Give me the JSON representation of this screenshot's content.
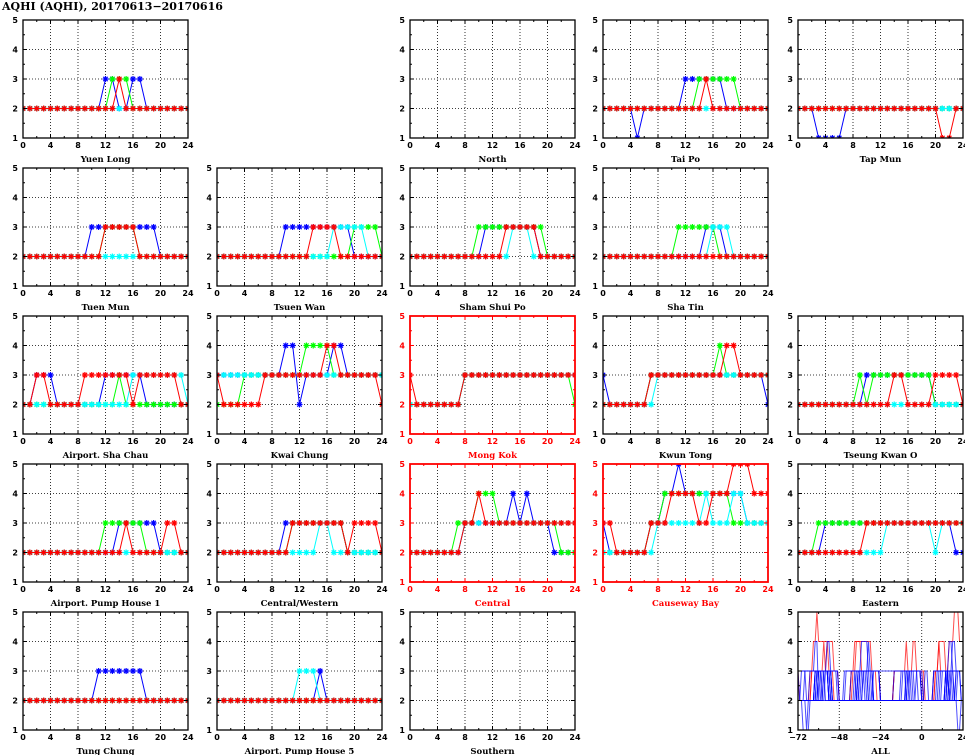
{
  "title": "AQHI (AQHI), 20170613−20170616",
  "colors": {
    "day_series": [
      "#0000ff",
      "#00ff00",
      "#00ffff",
      "#ff0000"
    ],
    "roadside": "#ff0000",
    "general": "#0000ff",
    "frame": "#000000"
  },
  "chart_data": [
    {
      "type": "line",
      "title": "Yuen Long",
      "roadside": false,
      "xlim": [
        0,
        24
      ],
      "ylim": [
        1,
        5
      ],
      "xticks": [
        0,
        4,
        8,
        12,
        16,
        20,
        24
      ],
      "yticks": [
        1,
        2,
        3,
        4,
        5
      ],
      "series": [
        {
          "color": "#0000ff",
          "values": "2*12,3*2,2*2,3*2,2*7"
        },
        {
          "color": "#00ff00",
          "values": "2*13,3*3,2*9"
        },
        {
          "color": "#00ffff",
          "values": "2*25"
        },
        {
          "color": "#ff0000",
          "values": "2*14,3*1,2*10"
        }
      ]
    },
    {
      "type": "line",
      "title": "North",
      "roadside": false,
      "xlim": [
        0,
        24
      ],
      "ylim": [
        1,
        5
      ],
      "xticks": [
        0,
        4,
        8,
        12,
        16,
        20,
        24
      ],
      "yticks": [
        1,
        2,
        3,
        4,
        5
      ],
      "series": []
    },
    {
      "type": "line",
      "title": "Tai Po",
      "roadside": false,
      "xlim": [
        0,
        24
      ],
      "ylim": [
        1,
        5
      ],
      "xticks": [
        0,
        4,
        8,
        12,
        16,
        20,
        24
      ],
      "yticks": [
        1,
        2,
        3,
        4,
        5
      ],
      "series": [
        {
          "color": "#0000ff",
          "values": "2*5,1*1,2*6,3*6,2*7"
        },
        {
          "color": "#00ff00",
          "values": "2*14,3*6,2*5"
        },
        {
          "color": "#00ffff",
          "values": "2*25"
        },
        {
          "color": "#ff0000",
          "values": "2*15,3*1,2*9"
        }
      ]
    },
    {
      "type": "line",
      "title": "Tap Mun",
      "roadside": false,
      "xlim": [
        0,
        24
      ],
      "ylim": [
        1,
        5
      ],
      "xticks": [
        0,
        4,
        8,
        12,
        16,
        20,
        24
      ],
      "yticks": [
        1,
        2,
        3,
        4,
        5
      ],
      "series": [
        {
          "color": "#0000ff",
          "values": "2*3,1*4,2*18"
        },
        {
          "color": "#00ff00",
          "values": "2*25"
        },
        {
          "color": "#00ffff",
          "values": "2*25"
        },
        {
          "color": "#ff0000",
          "values": "2*21,1*2,2*2"
        }
      ]
    },
    {
      "type": "line",
      "title": "Tuen Mun",
      "roadside": false,
      "xlim": [
        0,
        24
      ],
      "ylim": [
        1,
        5
      ],
      "xticks": [
        0,
        4,
        8,
        12,
        16,
        20,
        24
      ],
      "yticks": [
        1,
        2,
        3,
        4,
        5
      ],
      "series": [
        {
          "color": "#0000ff",
          "values": "2*10,3*10,2*5"
        },
        {
          "color": "#00ff00",
          "values": "2*12,3*5,2*8"
        },
        {
          "color": "#00ffff",
          "values": "2*25"
        },
        {
          "color": "#ff0000",
          "values": "2*12,3*5,2*8"
        }
      ]
    },
    {
      "type": "line",
      "title": "Tsuen Wan",
      "roadside": false,
      "xlim": [
        0,
        24
      ],
      "ylim": [
        1,
        5
      ],
      "xticks": [
        0,
        4,
        8,
        12,
        16,
        20,
        24
      ],
      "yticks": [
        1,
        2,
        3,
        4,
        5
      ],
      "series": [
        {
          "color": "#0000ff",
          "values": "2*10,3*10,2*5"
        },
        {
          "color": "#00ff00",
          "values": "2*20,3*4,2*1"
        },
        {
          "color": "#00ffff",
          "values": "2*17,3*5,2*3"
        },
        {
          "color": "#ff0000",
          "values": "2*14,3*4,2*7"
        }
      ]
    },
    {
      "type": "line",
      "title": "Sham Shui Po",
      "roadside": false,
      "xlim": [
        0,
        24
      ],
      "ylim": [
        1,
        5
      ],
      "xticks": [
        0,
        4,
        8,
        12,
        16,
        20,
        24
      ],
      "yticks": [
        1,
        2,
        3,
        4,
        5
      ],
      "series": [
        {
          "color": "#0000ff",
          "values": "2*11,3*8,2*6"
        },
        {
          "color": "#00ff00",
          "values": "2*10,3*10,2*5"
        },
        {
          "color": "#00ffff",
          "values": "2*15,3*3,2*7"
        },
        {
          "color": "#ff0000",
          "values": "2*14,3*5,2*6"
        }
      ]
    },
    {
      "type": "line",
      "title": "Sha Tin",
      "roadside": false,
      "xlim": [
        0,
        24
      ],
      "ylim": [
        1,
        5
      ],
      "xticks": [
        0,
        4,
        8,
        12,
        16,
        20,
        24
      ],
      "yticks": [
        1,
        2,
        3,
        4,
        5
      ],
      "series": [
        {
          "color": "#0000ff",
          "values": "2*15,3*3,2*7"
        },
        {
          "color": "#00ff00",
          "values": "2*11,3*6,2*8"
        },
        {
          "color": "#00ffff",
          "values": "2*16,3*3,2*6"
        },
        {
          "color": "#ff0000",
          "values": "2*25"
        }
      ]
    },
    {
      "type": "line",
      "title": "Airport. Sha Chau",
      "roadside": false,
      "xlim": [
        0,
        24
      ],
      "ylim": [
        1,
        5
      ],
      "xticks": [
        0,
        4,
        8,
        12,
        16,
        20,
        24
      ],
      "yticks": [
        1,
        2,
        3,
        4,
        5
      ],
      "series": [
        {
          "color": "#0000ff",
          "values": "2*2,3*3,2*7,3*6,2*7"
        },
        {
          "color": "#00ff00",
          "values": "2*14,3*1,2*10"
        },
        {
          "color": "#00ffff",
          "values": "2*16,3*8,2*1"
        },
        {
          "color": "#ff0000",
          "values": "2*2,3*2,2*5,3*7,2*1,3*6,2*2"
        }
      ]
    },
    {
      "type": "line",
      "title": "Kwai Chung",
      "roadside": false,
      "xlim": [
        0,
        24
      ],
      "ylim": [
        1,
        5
      ],
      "xticks": [
        0,
        4,
        8,
        12,
        16,
        20,
        24
      ],
      "yticks": [
        1,
        2,
        3,
        4,
        5
      ],
      "series": [
        {
          "color": "#0000ff",
          "values": "3*10,4*2,2*1,3*4,4*2,3*6"
        },
        {
          "color": "#00ff00",
          "values": "2*4,3*9,4*4,3*8"
        },
        {
          "color": "#00ffff",
          "values": "3*25"
        },
        {
          "color": "#ff0000",
          "values": "3*1,2*6,3*9,4*2,3*6,2*1"
        }
      ]
    },
    {
      "type": "line",
      "title": "Mong Kok",
      "roadside": true,
      "xlim": [
        0,
        24
      ],
      "ylim": [
        1,
        5
      ],
      "xticks": [
        0,
        4,
        8,
        12,
        16,
        20,
        24
      ],
      "yticks": [
        1,
        2,
        3,
        4,
        5
      ],
      "series": [
        {
          "color": "#0000ff",
          "values": "2*8,3*17"
        },
        {
          "color": "#00ff00",
          "values": "2*8,3*16,2*1"
        },
        {
          "color": "#00ffff",
          "values": "2*8,3*17"
        },
        {
          "color": "#ff0000",
          "values": "3*1,2*7,3*17"
        }
      ]
    },
    {
      "type": "line",
      "title": "Kwun Tong",
      "roadside": false,
      "xlim": [
        0,
        24
      ],
      "ylim": [
        1,
        5
      ],
      "xticks": [
        0,
        4,
        8,
        12,
        16,
        20,
        24
      ],
      "yticks": [
        1,
        2,
        3,
        4,
        5
      ],
      "series": [
        {
          "color": "#0000ff",
          "values": "3*1,2*6,3*17,2*1"
        },
        {
          "color": "#00ff00",
          "values": "2*7,3*10,4*1,3*7"
        },
        {
          "color": "#00ffff",
          "values": "2*8,3*17"
        },
        {
          "color": "#ff0000",
          "values": "2*7,3*11,4*2,3*5"
        }
      ]
    },
    {
      "type": "line",
      "title": "Tseung Kwan O",
      "roadside": false,
      "xlim": [
        0,
        24
      ],
      "ylim": [
        1,
        5
      ],
      "xticks": [
        0,
        4,
        8,
        12,
        16,
        20,
        24
      ],
      "yticks": [
        1,
        2,
        3,
        4,
        5
      ],
      "series": [
        {
          "color": "#0000ff",
          "values": "2*10,3*10,2*5"
        },
        {
          "color": "#00ff00",
          "values": "2*9,3*1,2*1,3*9,2*5"
        },
        {
          "color": "#00ffff",
          "values": "2*25"
        },
        {
          "color": "#ff0000",
          "values": "2*14,3*2,2*4,3*4,2*1"
        }
      ]
    },
    {
      "type": "line",
      "title": "Airport. Pump House 1",
      "roadside": false,
      "xlim": [
        0,
        24
      ],
      "ylim": [
        1,
        5
      ],
      "xticks": [
        0,
        4,
        8,
        12,
        16,
        20,
        24
      ],
      "yticks": [
        1,
        2,
        3,
        4,
        5
      ],
      "series": [
        {
          "color": "#0000ff",
          "values": "2*14,3*6,2*5"
        },
        {
          "color": "#00ff00",
          "values": "2*12,3*6,2*7"
        },
        {
          "color": "#00ffff",
          "values": "2*25"
        },
        {
          "color": "#ff0000",
          "values": "2*15,3*1,2*5,3*2,2*2"
        }
      ]
    },
    {
      "type": "line",
      "title": "Central/Western",
      "roadside": false,
      "xlim": [
        0,
        24
      ],
      "ylim": [
        1,
        5
      ],
      "xticks": [
        0,
        4,
        8,
        12,
        16,
        20,
        24
      ],
      "yticks": [
        1,
        2,
        3,
        4,
        5
      ],
      "series": [
        {
          "color": "#0000ff",
          "values": "2*10,3*9,2*6"
        },
        {
          "color": "#00ff00",
          "values": "2*11,3*8,2*6"
        },
        {
          "color": "#00ffff",
          "values": "2*15,3*2,2*8"
        },
        {
          "color": "#ff0000",
          "values": "2*11,3*8,2*1,3*4,2*1"
        }
      ]
    },
    {
      "type": "line",
      "title": "Central",
      "roadside": true,
      "xlim": [
        0,
        24
      ],
      "ylim": [
        1,
        5
      ],
      "xticks": [
        0,
        4,
        8,
        12,
        16,
        20,
        24
      ],
      "yticks": [
        1,
        2,
        3,
        4,
        5
      ],
      "series": [
        {
          "color": "#0000ff",
          "values": "2*8,3*7,4*1,3*1,4*1,3*3,2*4"
        },
        {
          "color": "#00ff00",
          "values": "2*7,3*3,4*3,3*9,2*3"
        },
        {
          "color": "#00ffff",
          "values": "2*8,3*17"
        },
        {
          "color": "#ff0000",
          "values": "2*8,3*2,4*1,3*14"
        }
      ]
    },
    {
      "type": "line",
      "title": "Causeway Bay",
      "roadside": true,
      "xlim": [
        0,
        24
      ],
      "ylim": [
        1,
        5
      ],
      "xticks": [
        0,
        4,
        8,
        12,
        16,
        20,
        24
      ],
      "yticks": [
        1,
        2,
        3,
        4,
        5
      ],
      "series": [
        {
          "color": "#0000ff",
          "values": "3*1,2*6,3*2,4*2,5*1,4*9,3*4"
        },
        {
          "color": "#00ff00",
          "values": "2*7,3*2,4*10,3*6"
        },
        {
          "color": "#00ffff",
          "values": "2*8,3*7,4*1,3*3,4*2,3*4"
        },
        {
          "color": "#ff0000",
          "values": "3*2,2*5,3*3,4*4,3*2,4*3,5*3,4*3"
        }
      ]
    },
    {
      "type": "line",
      "title": "Eastern",
      "roadside": false,
      "xlim": [
        0,
        24
      ],
      "ylim": [
        1,
        5
      ],
      "xticks": [
        0,
        4,
        8,
        12,
        16,
        20,
        24
      ],
      "yticks": [
        1,
        2,
        3,
        4,
        5
      ],
      "series": [
        {
          "color": "#0000ff",
          "values": "2*4,3*19,2*2"
        },
        {
          "color": "#00ff00",
          "values": "2*3,3*22"
        },
        {
          "color": "#00ffff",
          "values": "2*13,3*7,2*1,3*4"
        },
        {
          "color": "#ff0000",
          "values": "2*10,3*15"
        }
      ]
    },
    {
      "type": "line",
      "title": "Tung Chung",
      "roadside": false,
      "xlim": [
        0,
        24
      ],
      "ylim": [
        1,
        5
      ],
      "xticks": [
        0,
        4,
        8,
        12,
        16,
        20,
        24
      ],
      "yticks": [
        1,
        2,
        3,
        4,
        5
      ],
      "series": [
        {
          "color": "#0000ff",
          "values": "2*11,3*7,2*7"
        },
        {
          "color": "#00ff00",
          "values": "2*25"
        },
        {
          "color": "#00ffff",
          "values": "2*25"
        },
        {
          "color": "#ff0000",
          "values": "2*25"
        }
      ]
    },
    {
      "type": "line",
      "title": "Airport. Pump House 5",
      "roadside": false,
      "xlim": [
        0,
        24
      ],
      "ylim": [
        1,
        5
      ],
      "xticks": [
        0,
        4,
        8,
        12,
        16,
        20,
        24
      ],
      "yticks": [
        1,
        2,
        3,
        4,
        5
      ],
      "series": [
        {
          "color": "#0000ff",
          "values": "2*15,3*1,2*9"
        },
        {
          "color": "#00ff00",
          "values": "2*25"
        },
        {
          "color": "#00ffff",
          "values": "2*12,3*3,2*10"
        },
        {
          "color": "#ff0000",
          "values": "2*25"
        }
      ]
    },
    {
      "type": "line",
      "title": "Southern",
      "roadside": false,
      "xlim": [
        0,
        24
      ],
      "ylim": [
        1,
        5
      ],
      "xticks": [
        0,
        4,
        8,
        12,
        16,
        20,
        24
      ],
      "yticks": [
        1,
        2,
        3,
        4,
        5
      ],
      "series": []
    },
    {
      "type": "line",
      "title": "ALL",
      "roadside": false,
      "aggregate": true,
      "xlim": [
        -72,
        24
      ],
      "ylim": [
        1,
        5
      ],
      "xticks": [
        -72,
        -48,
        -24,
        0,
        24
      ],
      "yticks": [
        1,
        2,
        3,
        4,
        5
      ],
      "series": []
    }
  ]
}
